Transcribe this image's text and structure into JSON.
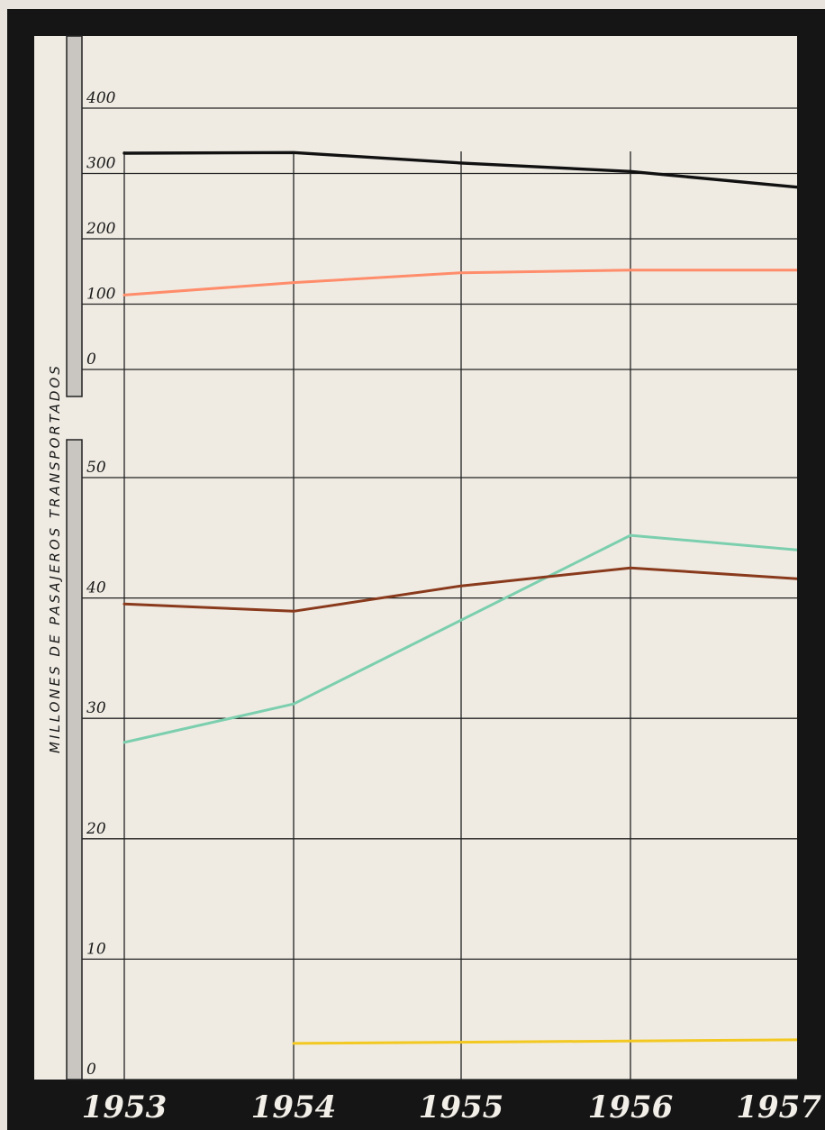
{
  "chart_data": {
    "type": "line",
    "title": "",
    "ylabel": "MILLONES DE PASAJEROS TRANSPORTADOS",
    "x": [
      "1953",
      "1954",
      "1955",
      "1956",
      "1957"
    ],
    "grid": true,
    "panels": [
      {
        "id": "upper",
        "ylim": [
          0,
          400
        ],
        "yticks": [
          "400",
          "300",
          "200",
          "100",
          "0"
        ],
        "series": [
          {
            "color": "#111111",
            "values": [
              331,
              332,
              316,
              303,
              279
            ]
          },
          {
            "color": "#ff8c6a",
            "values": [
              114,
              133,
              148,
              152,
              152
            ]
          }
        ]
      },
      {
        "id": "lower",
        "ylim": [
          0,
          50
        ],
        "yticks": [
          "50",
          "40",
          "30",
          "20",
          "10",
          "0"
        ],
        "series": [
          {
            "color": "#7ccfae",
            "values": [
              28.0,
              31.2,
              null,
              45.2,
              44.0
            ]
          },
          {
            "color": "#8a3a1c",
            "values": [
              39.5,
              38.9,
              41.0,
              42.5,
              41.6
            ]
          },
          {
            "color": "#f3c820",
            "values": [
              null,
              3.0,
              null,
              null,
              3.3
            ]
          }
        ]
      }
    ]
  }
}
